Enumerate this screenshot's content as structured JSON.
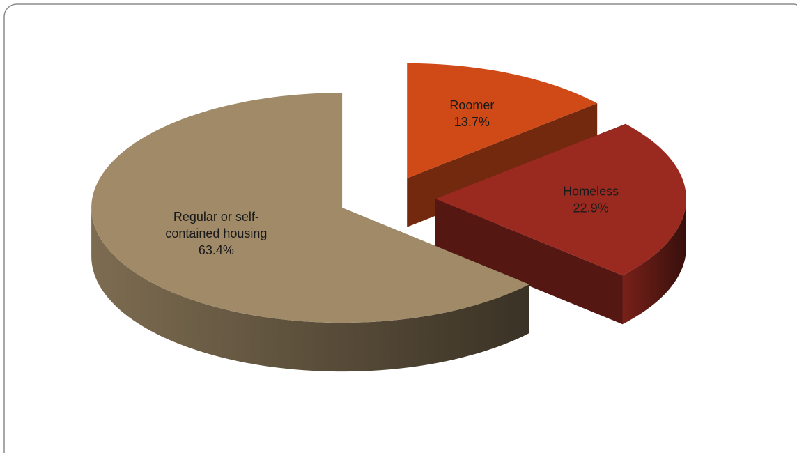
{
  "chart_data": {
    "type": "pie3d",
    "categories": [
      "Roomer",
      "Homeless",
      "Regular or self-contained housing"
    ],
    "values": [
      13.7,
      22.9,
      63.4
    ],
    "value_labels": [
      "13.7%",
      "22.9%",
      "63.4%"
    ],
    "colors": [
      "#d04a18",
      "#9a2a20",
      "#a08a68"
    ]
  }
}
